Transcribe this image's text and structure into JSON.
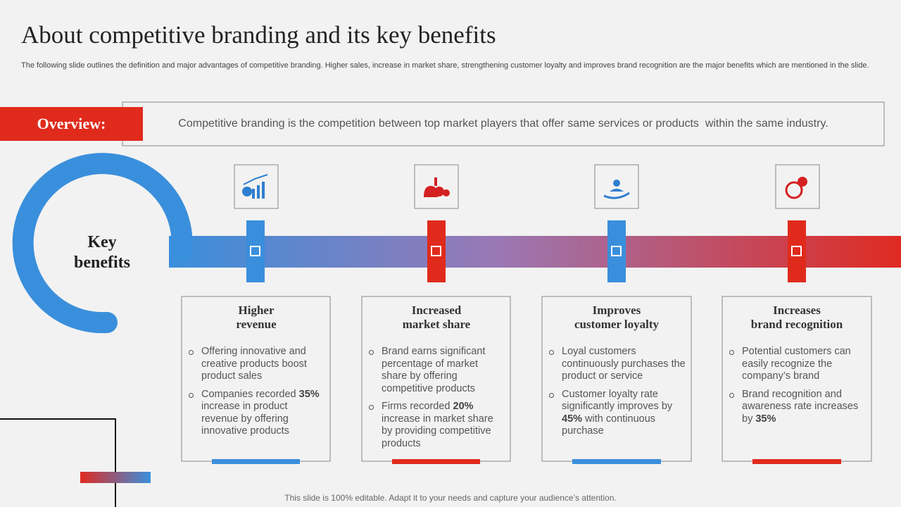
{
  "header": {
    "title": "About competitive branding and its key benefits",
    "subtitle": "The following slide outlines the definition and major advantages of competitive branding. Higher sales, increase in market share, strengthening customer loyalty and improves brand recognition are the major benefits which are mentioned in the slide."
  },
  "overview": {
    "label": "Overview:",
    "text": "Competitive branding is the competition between top market players that offer same services or products  within the same industry."
  },
  "hub": {
    "lines": [
      "Key",
      "benefits"
    ]
  },
  "cards": [
    {
      "heading": [
        "Higher",
        "revenue"
      ],
      "bullets": [
        {
          "parts": [
            "Offering innovative and creative products boost product sales"
          ]
        },
        {
          "parts": [
            "Companies recorded ",
            "35%",
            " increase in product revenue by offering innovative products"
          ]
        }
      ]
    },
    {
      "heading": [
        "Increased",
        "market share"
      ],
      "bullets": [
        {
          "parts": [
            "Brand earns significant percentage of market share by offering competitive products"
          ]
        },
        {
          "parts": [
            "Firms recorded ",
            "20%",
            " increase in market share by providing competitive products"
          ]
        }
      ]
    },
    {
      "heading": [
        "Improves",
        "customer loyalty"
      ],
      "bullets": [
        {
          "parts": [
            "Loyal customers continuously purchases the product or service"
          ]
        },
        {
          "parts": [
            "Customer loyalty rate significantly improves by ",
            "45%",
            " with continuous purchase"
          ]
        }
      ]
    },
    {
      "heading": [
        "Increases",
        "brand recognition"
      ],
      "bullets": [
        {
          "parts": [
            "Potential customers can easily recognize the company’s brand"
          ]
        },
        {
          "parts": [
            "Brand recognition and awareness rate increases by ",
            "35%"
          ]
        }
      ]
    }
  ],
  "footer": {
    "text": "This slide is 100% editable. Adapt it to your needs and capture your audience’s attention."
  }
}
